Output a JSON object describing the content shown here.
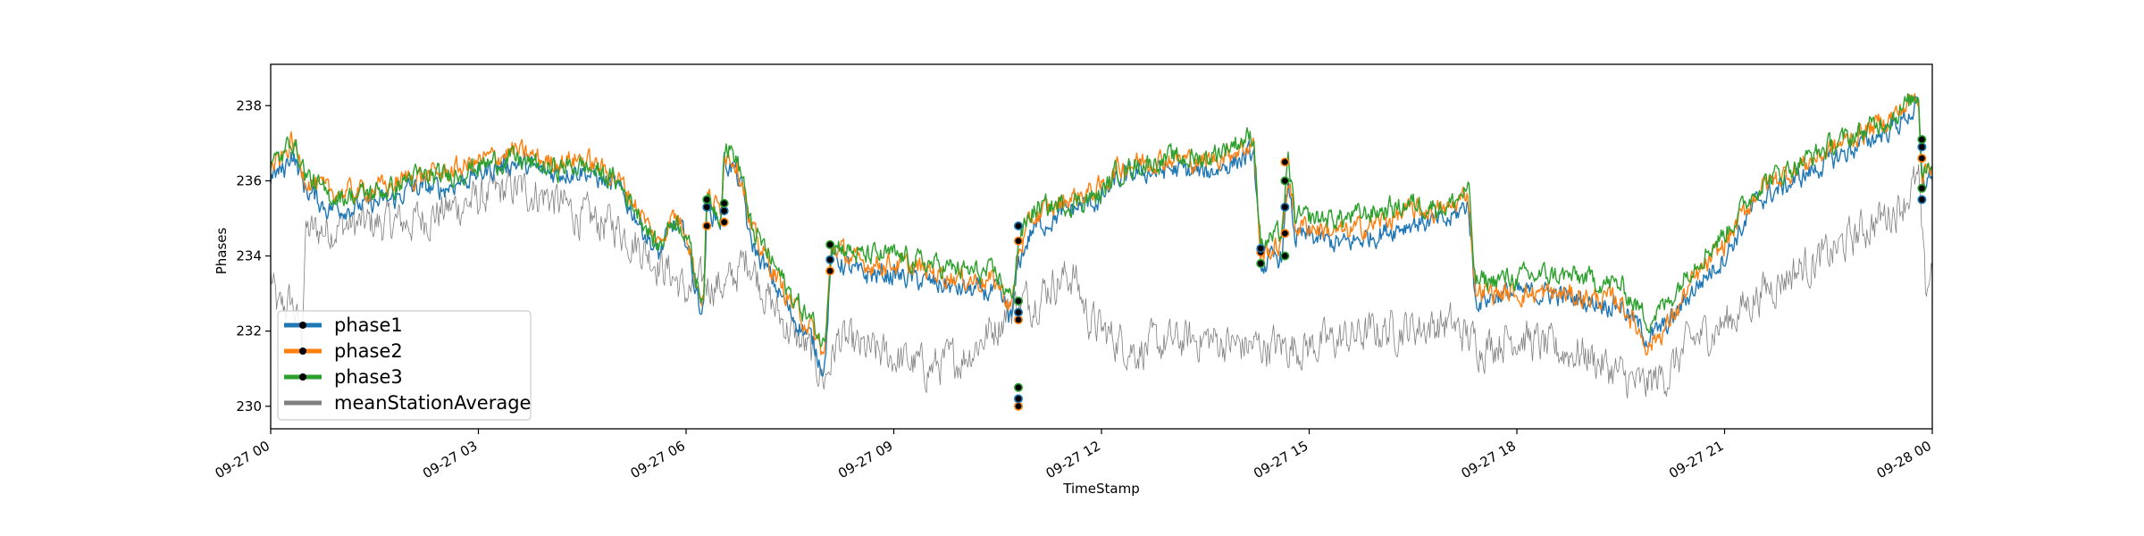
{
  "chart_data": {
    "type": "line",
    "title": "",
    "xlabel": "TimeStamp",
    "ylabel": "Phases",
    "x_range_hours": [
      0,
      24
    ],
    "ylim": [
      229.4,
      239.1
    ],
    "x_ticks": [
      {
        "h": 0,
        "label": "09-27 00"
      },
      {
        "h": 3,
        "label": "09-27 03"
      },
      {
        "h": 6,
        "label": "09-27 06"
      },
      {
        "h": 9,
        "label": "09-27 09"
      },
      {
        "h": 12,
        "label": "09-27 12"
      },
      {
        "h": 15,
        "label": "09-27 15"
      },
      {
        "h": 18,
        "label": "09-27 18"
      },
      {
        "h": 21,
        "label": "09-27 21"
      },
      {
        "h": 24,
        "label": "09-28 00"
      }
    ],
    "y_ticks": [
      230,
      232,
      234,
      236,
      238
    ],
    "legend": {
      "position": "lower-left"
    },
    "grid": false,
    "series": [
      {
        "name": "phase1",
        "color": "#1f77b4",
        "noise": 0.3,
        "points": [
          [
            0,
            236.1
          ],
          [
            0.2,
            236.3
          ],
          [
            0.3,
            236.8
          ],
          [
            0.5,
            235.8
          ],
          [
            0.8,
            235.3
          ],
          [
            1.2,
            235.3
          ],
          [
            1.8,
            235.5
          ],
          [
            2.0,
            235.8
          ],
          [
            2.5,
            235.8
          ],
          [
            3.0,
            236.2
          ],
          [
            3.5,
            236.5
          ],
          [
            4.0,
            236.2
          ],
          [
            4.5,
            236.3
          ],
          [
            5.0,
            235.8
          ],
          [
            5.3,
            235.0
          ],
          [
            5.6,
            234.0
          ],
          [
            5.8,
            234.8
          ],
          [
            6.0,
            234.5
          ],
          [
            6.15,
            233.0
          ],
          [
            6.25,
            232.5
          ],
          [
            6.3,
            235.3
          ],
          [
            6.5,
            234.9
          ],
          [
            6.55,
            236.5
          ],
          [
            6.7,
            236.3
          ],
          [
            6.85,
            235.5
          ],
          [
            6.9,
            234.5
          ],
          [
            7.2,
            233.5
          ],
          [
            7.5,
            232.5
          ],
          [
            7.8,
            231.8
          ],
          [
            8.0,
            231.0
          ],
          [
            8.1,
            234.0
          ],
          [
            8.5,
            233.5
          ],
          [
            9.0,
            233.5
          ],
          [
            9.5,
            233.3
          ],
          [
            10.0,
            233.1
          ],
          [
            10.5,
            233.0
          ],
          [
            10.7,
            232.3
          ],
          [
            10.8,
            233.8
          ],
          [
            11.0,
            234.7
          ],
          [
            11.5,
            235.2
          ],
          [
            12.0,
            235.5
          ],
          [
            12.2,
            236.0
          ],
          [
            12.5,
            236.2
          ],
          [
            13.0,
            236.3
          ],
          [
            13.5,
            236.2
          ],
          [
            13.9,
            236.5
          ],
          [
            14.2,
            236.7
          ],
          [
            14.3,
            233.7
          ],
          [
            14.6,
            234.0
          ],
          [
            14.7,
            235.9
          ],
          [
            14.8,
            234.5
          ],
          [
            15.0,
            234.5
          ],
          [
            15.5,
            234.3
          ],
          [
            16.0,
            234.6
          ],
          [
            16.5,
            234.9
          ],
          [
            17.0,
            234.9
          ],
          [
            17.3,
            235.4
          ],
          [
            17.4,
            232.8
          ],
          [
            17.8,
            233.0
          ],
          [
            18.5,
            233.0
          ],
          [
            19.0,
            232.8
          ],
          [
            19.5,
            232.7
          ],
          [
            19.9,
            231.8
          ],
          [
            20.2,
            232.2
          ],
          [
            20.5,
            233.0
          ],
          [
            21.0,
            234.0
          ],
          [
            21.5,
            235.5
          ],
          [
            22.0,
            236.0
          ],
          [
            22.5,
            236.5
          ],
          [
            23.0,
            237.0
          ],
          [
            23.5,
            237.5
          ],
          [
            23.8,
            238.0
          ],
          [
            23.85,
            235.9
          ],
          [
            24.0,
            236.2
          ]
        ]
      },
      {
        "name": "phase2",
        "color": "#ff7f0e",
        "noise": 0.3,
        "points": [
          [
            0,
            236.3
          ],
          [
            0.2,
            236.6
          ],
          [
            0.3,
            237.1
          ],
          [
            0.5,
            236.1
          ],
          [
            0.8,
            235.7
          ],
          [
            1.2,
            235.7
          ],
          [
            1.8,
            235.9
          ],
          [
            2.0,
            236.1
          ],
          [
            2.5,
            236.2
          ],
          [
            3.0,
            236.5
          ],
          [
            3.5,
            236.8
          ],
          [
            4.0,
            236.5
          ],
          [
            4.5,
            236.6
          ],
          [
            5.0,
            236.1
          ],
          [
            5.3,
            235.3
          ],
          [
            5.6,
            234.3
          ],
          [
            5.8,
            235.1
          ],
          [
            6.0,
            234.8
          ],
          [
            6.15,
            233.3
          ],
          [
            6.25,
            232.8
          ],
          [
            6.3,
            235.6
          ],
          [
            6.5,
            235.2
          ],
          [
            6.55,
            236.8
          ],
          [
            6.7,
            236.6
          ],
          [
            6.85,
            235.8
          ],
          [
            6.9,
            234.8
          ],
          [
            7.2,
            233.8
          ],
          [
            7.5,
            232.8
          ],
          [
            7.8,
            232.1
          ],
          [
            8.0,
            231.3
          ],
          [
            8.1,
            234.3
          ],
          [
            8.5,
            233.8
          ],
          [
            9.0,
            233.8
          ],
          [
            9.5,
            233.6
          ],
          [
            10.0,
            233.4
          ],
          [
            10.5,
            233.3
          ],
          [
            10.7,
            232.6
          ],
          [
            10.8,
            234.1
          ],
          [
            11.0,
            235.0
          ],
          [
            11.5,
            235.5
          ],
          [
            12.0,
            235.8
          ],
          [
            12.2,
            236.3
          ],
          [
            12.5,
            236.5
          ],
          [
            13.0,
            236.6
          ],
          [
            13.5,
            236.5
          ],
          [
            13.9,
            236.8
          ],
          [
            14.2,
            237.0
          ],
          [
            14.3,
            234.0
          ],
          [
            14.6,
            234.3
          ],
          [
            14.7,
            236.2
          ],
          [
            14.8,
            234.8
          ],
          [
            15.0,
            234.8
          ],
          [
            15.5,
            234.6
          ],
          [
            16.0,
            234.9
          ],
          [
            16.5,
            235.2
          ],
          [
            17.0,
            235.2
          ],
          [
            17.3,
            235.7
          ],
          [
            17.4,
            233.1
          ],
          [
            17.8,
            233.0
          ],
          [
            18.5,
            233.0
          ],
          [
            19.0,
            232.9
          ],
          [
            19.5,
            232.8
          ],
          [
            19.9,
            231.6
          ],
          [
            20.2,
            232.2
          ],
          [
            20.5,
            233.2
          ],
          [
            21.0,
            234.3
          ],
          [
            21.5,
            235.8
          ],
          [
            22.0,
            236.3
          ],
          [
            22.5,
            236.8
          ],
          [
            23.0,
            237.3
          ],
          [
            23.5,
            237.8
          ],
          [
            23.8,
            238.3
          ],
          [
            23.85,
            236.2
          ],
          [
            24.0,
            236.5
          ]
        ]
      },
      {
        "name": "phase3",
        "color": "#2ca02c",
        "noise": 0.3,
        "points": [
          [
            0,
            236.4
          ],
          [
            0.2,
            236.7
          ],
          [
            0.3,
            237.2
          ],
          [
            0.5,
            236.2
          ],
          [
            0.8,
            235.6
          ],
          [
            1.2,
            235.6
          ],
          [
            1.8,
            235.8
          ],
          [
            2.0,
            236.1
          ],
          [
            2.5,
            236.1
          ],
          [
            3.0,
            236.4
          ],
          [
            3.5,
            236.6
          ],
          [
            4.0,
            236.3
          ],
          [
            4.5,
            236.4
          ],
          [
            5.0,
            236.0
          ],
          [
            5.3,
            235.2
          ],
          [
            5.6,
            234.2
          ],
          [
            5.8,
            235.0
          ],
          [
            6.0,
            234.7
          ],
          [
            6.15,
            233.3
          ],
          [
            6.25,
            232.9
          ],
          [
            6.3,
            235.5
          ],
          [
            6.5,
            235.1
          ],
          [
            6.55,
            237.0
          ],
          [
            6.7,
            236.7
          ],
          [
            6.85,
            235.9
          ],
          [
            6.9,
            234.9
          ],
          [
            7.2,
            234.0
          ],
          [
            7.5,
            233.0
          ],
          [
            7.8,
            232.3
          ],
          [
            8.0,
            231.6
          ],
          [
            8.1,
            234.4
          ],
          [
            8.5,
            234.0
          ],
          [
            9.0,
            234.0
          ],
          [
            9.5,
            233.8
          ],
          [
            10.0,
            233.6
          ],
          [
            10.5,
            233.5
          ],
          [
            10.7,
            232.8
          ],
          [
            10.8,
            234.4
          ],
          [
            11.0,
            235.2
          ],
          [
            11.5,
            235.4
          ],
          [
            12.0,
            235.6
          ],
          [
            12.2,
            236.2
          ],
          [
            12.5,
            236.4
          ],
          [
            13.0,
            236.6
          ],
          [
            13.5,
            236.6
          ],
          [
            13.9,
            237.0
          ],
          [
            14.2,
            237.2
          ],
          [
            14.3,
            234.3
          ],
          [
            14.6,
            234.6
          ],
          [
            14.7,
            236.5
          ],
          [
            14.8,
            235.0
          ],
          [
            15.0,
            235.0
          ],
          [
            15.5,
            235.0
          ],
          [
            16.0,
            235.2
          ],
          [
            16.5,
            235.4
          ],
          [
            17.0,
            235.3
          ],
          [
            17.3,
            235.8
          ],
          [
            17.4,
            233.3
          ],
          [
            17.8,
            233.4
          ],
          [
            18.5,
            233.5
          ],
          [
            19.0,
            233.4
          ],
          [
            19.5,
            233.2
          ],
          [
            19.9,
            232.3
          ],
          [
            20.2,
            232.8
          ],
          [
            20.5,
            233.7
          ],
          [
            21.0,
            234.6
          ],
          [
            21.5,
            235.9
          ],
          [
            22.0,
            236.4
          ],
          [
            22.5,
            236.9
          ],
          [
            23.0,
            237.3
          ],
          [
            23.5,
            237.8
          ],
          [
            23.8,
            238.3
          ],
          [
            23.85,
            236.3
          ],
          [
            24.0,
            236.6
          ]
        ]
      },
      {
        "name": "meanStationAverage",
        "color": "#7f7f7f",
        "noise": 0.55,
        "points": [
          [
            0,
            233.5
          ],
          [
            0.1,
            232.5
          ],
          [
            0.3,
            232.8
          ],
          [
            0.45,
            231.8
          ],
          [
            0.5,
            234.6
          ],
          [
            1.0,
            234.8
          ],
          [
            2.0,
            234.9
          ],
          [
            2.5,
            235.2
          ],
          [
            3.0,
            235.5
          ],
          [
            3.5,
            235.8
          ],
          [
            4.0,
            235.6
          ],
          [
            4.5,
            235.0
          ],
          [
            5.0,
            234.8
          ],
          [
            5.5,
            234.0
          ],
          [
            5.8,
            233.5
          ],
          [
            6.0,
            233.0
          ],
          [
            6.3,
            233.3
          ],
          [
            6.6,
            233.2
          ],
          [
            6.9,
            234.0
          ],
          [
            7.2,
            232.8
          ],
          [
            7.5,
            232.0
          ],
          [
            7.8,
            231.4
          ],
          [
            8.0,
            230.7
          ],
          [
            8.2,
            231.8
          ],
          [
            8.5,
            231.5
          ],
          [
            9.0,
            231.3
          ],
          [
            9.5,
            231.0
          ],
          [
            10.0,
            231.3
          ],
          [
            10.5,
            232.2
          ],
          [
            10.8,
            232.8
          ],
          [
            11.0,
            232.8
          ],
          [
            11.3,
            233.3
          ],
          [
            11.6,
            233.5
          ],
          [
            11.8,
            232.4
          ],
          [
            12.0,
            232.0
          ],
          [
            12.5,
            231.5
          ],
          [
            13.0,
            231.7
          ],
          [
            13.5,
            231.8
          ],
          [
            14.0,
            231.6
          ],
          [
            14.5,
            231.6
          ],
          [
            15.0,
            231.6
          ],
          [
            15.5,
            231.8
          ],
          [
            16.0,
            232.0
          ],
          [
            16.5,
            232.1
          ],
          [
            17.0,
            232.2
          ],
          [
            17.5,
            231.6
          ],
          [
            18.0,
            231.9
          ],
          [
            18.5,
            231.5
          ],
          [
            19.0,
            231.4
          ],
          [
            19.5,
            230.8
          ],
          [
            19.8,
            230.5
          ],
          [
            20.2,
            230.9
          ],
          [
            20.5,
            231.7
          ],
          [
            21.0,
            232.2
          ],
          [
            21.5,
            233.0
          ],
          [
            22.0,
            233.6
          ],
          [
            22.5,
            234.0
          ],
          [
            23.0,
            234.7
          ],
          [
            23.5,
            235.3
          ],
          [
            23.8,
            236.0
          ],
          [
            23.9,
            233.0
          ],
          [
            24.0,
            233.8
          ]
        ]
      }
    ],
    "event_markers": [
      {
        "h": 6.3,
        "values": [
          234.8,
          235.3,
          235.5
        ]
      },
      {
        "h": 6.55,
        "values": [
          234.9,
          235.2,
          235.4
        ]
      },
      {
        "h": 8.08,
        "values": [
          233.6,
          233.9,
          234.3
        ]
      },
      {
        "h": 10.8,
        "values": [
          230.0,
          230.2,
          230.5,
          232.3,
          232.5,
          232.8,
          234.4,
          234.8
        ]
      },
      {
        "h": 14.3,
        "values": [
          233.8,
          234.1,
          234.2
        ]
      },
      {
        "h": 14.65,
        "values": [
          234.0,
          234.6,
          235.3,
          236.0,
          236.5
        ]
      },
      {
        "h": 23.85,
        "values": [
          235.5,
          235.8,
          236.6,
          236.9,
          237.1
        ]
      }
    ]
  }
}
